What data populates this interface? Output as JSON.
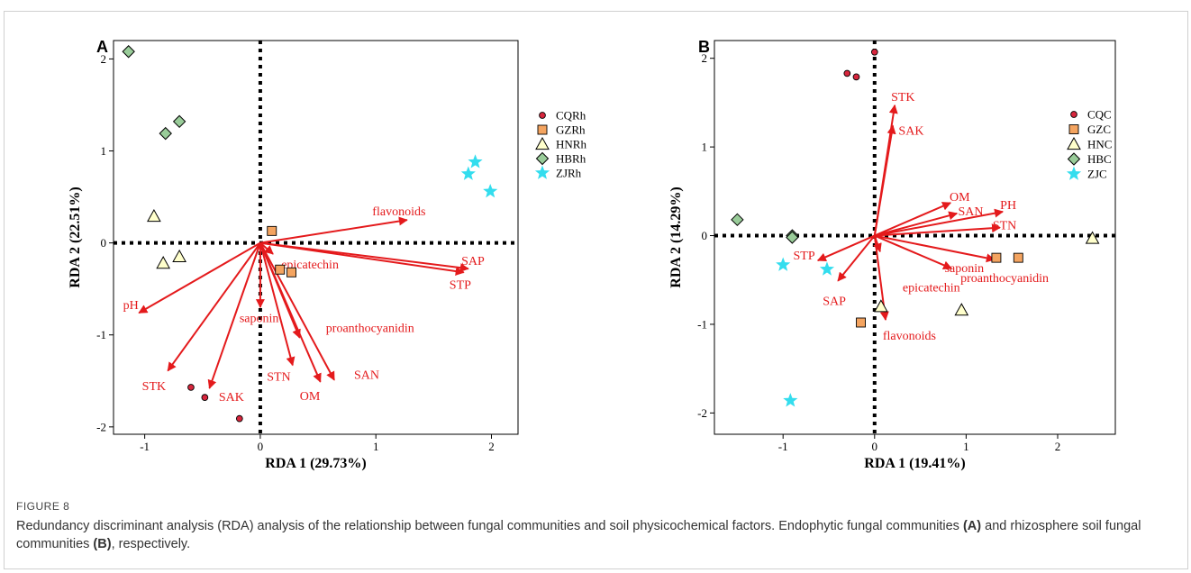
{
  "figure": {
    "label": "FIGURE 8",
    "caption_part1": "Redundancy discriminant analysis (RDA) analysis of the relationship between fungal communities and soil physicochemical factors. Endophytic fungal communities ",
    "caption_ref_a": "(A)",
    "caption_part2": " and rhizosphere soil fungal communities ",
    "caption_ref_b": "(B)",
    "caption_part3": ", respectively."
  },
  "colors": {
    "arrow": "#e41a1c",
    "CQ": "#d7263d",
    "GZ": "#f4a460",
    "HN": "#ffffcc",
    "HB": "#99cc99",
    "ZJ": "#33ddee"
  },
  "chart_data": [
    {
      "type": "scatter",
      "panel": "A",
      "xlabel": "RDA 1 (29.73%)",
      "ylabel": "RDA 2 (22.51%)",
      "xlim": [
        -1.27,
        2.23
      ],
      "ylim": [
        -2.08,
        2.2
      ],
      "xticks": [
        -1,
        0,
        1,
        2
      ],
      "yticks": [
        -2,
        -1,
        0,
        1,
        2
      ],
      "reference_lines": {
        "x": 0,
        "y": 0,
        "style": "dotted"
      },
      "legend": {
        "placement": "right",
        "entries": [
          {
            "name": "CQRh",
            "shape": "circle",
            "color": "#d7263d"
          },
          {
            "name": "GZRh",
            "shape": "square",
            "color": "#f4a460"
          },
          {
            "name": "HNRh",
            "shape": "triangle",
            "color": "#ffffcc"
          },
          {
            "name": "HBRh",
            "shape": "diamond",
            "color": "#99cc99"
          },
          {
            "name": "ZJRh",
            "shape": "star",
            "color": "#33ddee"
          }
        ]
      },
      "series": [
        {
          "name": "CQRh",
          "points": [
            [
              -0.6,
              -1.57
            ],
            [
              -0.48,
              -1.68
            ],
            [
              -0.18,
              -1.91
            ]
          ]
        },
        {
          "name": "GZRh",
          "points": [
            [
              0.1,
              0.13
            ],
            [
              0.17,
              -0.29
            ],
            [
              0.27,
              -0.32
            ]
          ]
        },
        {
          "name": "HNRh",
          "points": [
            [
              -0.92,
              0.29
            ],
            [
              -0.84,
              -0.22
            ],
            [
              -0.7,
              -0.15
            ]
          ]
        },
        {
          "name": "HBRh",
          "points": [
            [
              -1.14,
              2.08
            ],
            [
              -0.82,
              1.19
            ],
            [
              -0.7,
              1.32
            ]
          ]
        },
        {
          "name": "ZJRh",
          "points": [
            [
              1.8,
              0.75
            ],
            [
              1.86,
              0.88
            ],
            [
              1.99,
              0.56
            ]
          ]
        }
      ],
      "vectors": [
        {
          "label": "flavonoids",
          "x": 1.27,
          "y": 0.25,
          "lx": 1.2,
          "ly": 0.35
        },
        {
          "label": "SAP",
          "x": 1.8,
          "y": -0.28,
          "lx": 1.84,
          "ly": -0.19
        },
        {
          "label": "STP",
          "x": 1.76,
          "y": -0.32,
          "lx": 1.73,
          "ly": -0.45
        },
        {
          "label": "epicatechin",
          "x": 0.11,
          "y": -0.12,
          "lx": 0.43,
          "ly": -0.23
        },
        {
          "label": "pH",
          "x": -1.05,
          "y": -0.76,
          "lx": -1.12,
          "ly": -0.67
        },
        {
          "label": "STK",
          "x": -0.8,
          "y": -1.39,
          "lx": -0.92,
          "ly": -1.55
        },
        {
          "label": "SAK",
          "x": -0.44,
          "y": -1.58,
          "lx": -0.25,
          "ly": -1.67
        },
        {
          "label": "saponin",
          "x": 0.0,
          "y": -0.7,
          "lx": -0.01,
          "ly": -0.81
        },
        {
          "label": "STN",
          "x": 0.28,
          "y": -1.33,
          "lx": 0.16,
          "ly": -1.45
        },
        {
          "label": "OM",
          "x": 0.52,
          "y": -1.51,
          "lx": 0.43,
          "ly": -1.66
        },
        {
          "label": "SAN",
          "x": 0.64,
          "y": -1.49,
          "lx": 0.92,
          "ly": -1.43
        },
        {
          "label": "proanthocyanidin",
          "x": 0.34,
          "y": -1.03,
          "lx": 0.95,
          "ly": -0.92
        }
      ]
    },
    {
      "type": "scatter",
      "panel": "B",
      "xlabel": "RDA 1 (19.41%)",
      "ylabel": "RDA 2 (14.29%)",
      "xlim": [
        -1.75,
        2.63
      ],
      "ylim": [
        -2.24,
        2.2
      ],
      "xticks": [
        -1,
        0,
        1,
        2
      ],
      "yticks": [
        -2,
        -1,
        0,
        1,
        2
      ],
      "reference_lines": {
        "x": 0,
        "y": 0,
        "style": "dotted"
      },
      "legend": {
        "placement": "right",
        "entries": [
          {
            "name": "CQC",
            "shape": "circle",
            "color": "#d7263d"
          },
          {
            "name": "GZC",
            "shape": "square",
            "color": "#f4a460"
          },
          {
            "name": "HNC",
            "shape": "triangle",
            "color": "#ffffcc"
          },
          {
            "name": "HBC",
            "shape": "diamond",
            "color": "#99cc99"
          },
          {
            "name": "ZJC",
            "shape": "star",
            "color": "#33ddee"
          }
        ]
      },
      "series": [
        {
          "name": "CQC",
          "points": [
            [
              -0.3,
              1.83
            ],
            [
              -0.2,
              1.79
            ],
            [
              0.0,
              2.07
            ]
          ]
        },
        {
          "name": "GZC",
          "points": [
            [
              -0.15,
              -0.98
            ],
            [
              1.33,
              -0.25
            ],
            [
              1.57,
              -0.25
            ]
          ]
        },
        {
          "name": "HNC",
          "points": [
            [
              0.07,
              -0.8
            ],
            [
              0.95,
              -0.84
            ],
            [
              2.38,
              -0.03
            ]
          ]
        },
        {
          "name": "HBC",
          "points": [
            [
              -1.5,
              0.18
            ],
            [
              -0.9,
              0.0
            ],
            [
              -0.9,
              -0.02
            ]
          ]
        },
        {
          "name": "ZJC",
          "points": [
            [
              -1.0,
              -0.33
            ],
            [
              -0.52,
              -0.38
            ],
            [
              -0.92,
              -1.86
            ]
          ]
        }
      ],
      "vectors": [
        {
          "label": "STK",
          "x": 0.22,
          "y": 1.47,
          "lx": 0.31,
          "ly": 1.57
        },
        {
          "label": "SAK",
          "x": 0.2,
          "y": 1.24,
          "lx": 0.4,
          "ly": 1.19
        },
        {
          "label": "OM",
          "x": 0.83,
          "y": 0.37,
          "lx": 0.93,
          "ly": 0.44
        },
        {
          "label": "SAN",
          "x": 0.9,
          "y": 0.25,
          "lx": 1.05,
          "ly": 0.28
        },
        {
          "label": "PH",
          "x": 1.4,
          "y": 0.27,
          "lx": 1.46,
          "ly": 0.35
        },
        {
          "label": "STN",
          "x": 1.37,
          "y": 0.09,
          "lx": 1.42,
          "ly": 0.12
        },
        {
          "label": "saponin",
          "x": 1.31,
          "y": -0.27,
          "lx": 0.98,
          "ly": -0.36
        },
        {
          "label": "proanthocyanidin",
          "x": 0.84,
          "y": -0.37,
          "lx": 1.42,
          "ly": -0.47
        },
        {
          "label": "epicatechin",
          "x": 0.06,
          "y": -0.18,
          "lx": 0.62,
          "ly": -0.58
        },
        {
          "label": "STP",
          "x": -0.62,
          "y": -0.28,
          "lx": -0.77,
          "ly": -0.22
        },
        {
          "label": "SAP",
          "x": -0.4,
          "y": -0.51,
          "lx": -0.44,
          "ly": -0.73
        },
        {
          "label": "flavonoids",
          "x": 0.12,
          "y": -0.95,
          "lx": 0.38,
          "ly": -1.12
        }
      ]
    }
  ]
}
